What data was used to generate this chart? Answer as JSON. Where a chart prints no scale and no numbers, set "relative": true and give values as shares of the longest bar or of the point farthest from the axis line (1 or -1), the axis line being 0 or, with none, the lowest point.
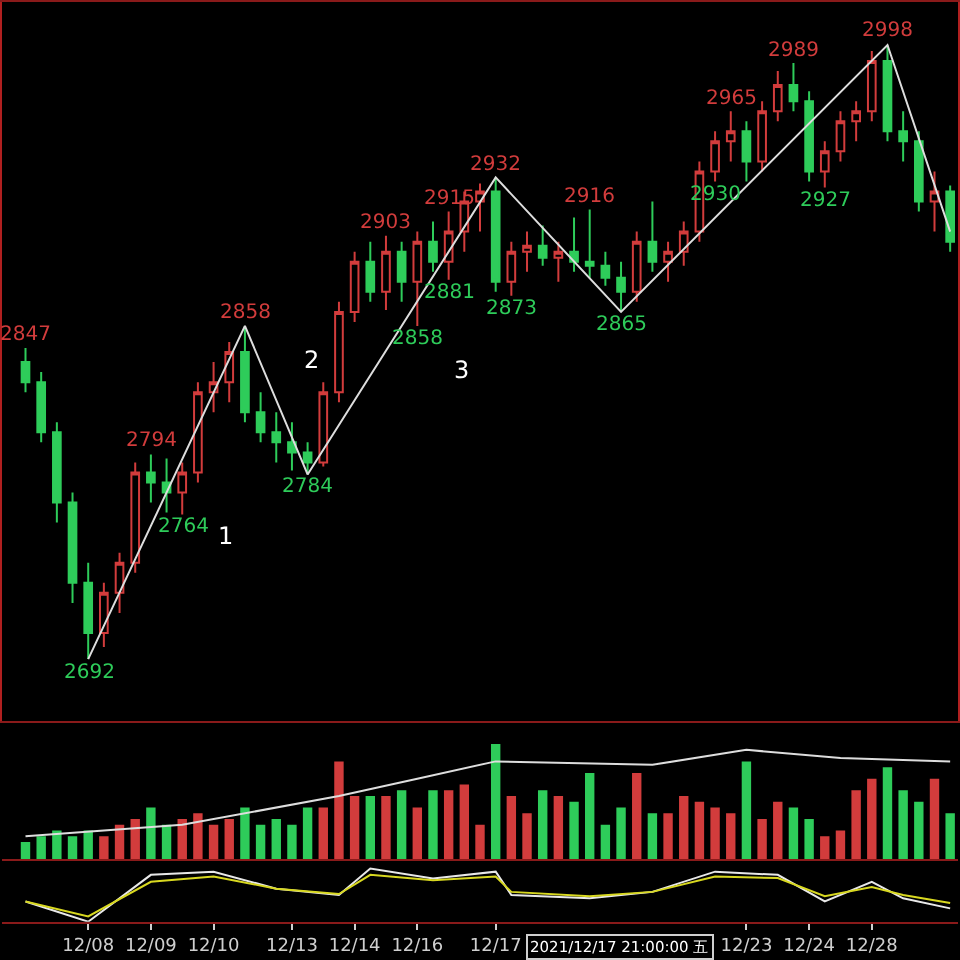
{
  "chart_data": [
    {
      "type": "candlestick",
      "categories": [
        null,
        null,
        null,
        null,
        null,
        null,
        null,
        null,
        null,
        null,
        null,
        null,
        null,
        null,
        null,
        null,
        null,
        null,
        null,
        null,
        null,
        null,
        null,
        null,
        null,
        null,
        null,
        null,
        null,
        null,
        null,
        null,
        null,
        null,
        null,
        null,
        null,
        null,
        null,
        null,
        null,
        null,
        null,
        null,
        null,
        null,
        null,
        null,
        null,
        null,
        null,
        null,
        null,
        null,
        null,
        null,
        null,
        null,
        null,
        null
      ],
      "ohlc": [
        [
          2840,
          2847,
          2825,
          2830
        ],
        [
          2830,
          2835,
          2800,
          2805
        ],
        [
          2805,
          2810,
          2760,
          2770
        ],
        [
          2770,
          2775,
          2720,
          2730
        ],
        [
          2730,
          2740,
          2692,
          2705
        ],
        [
          2705,
          2730,
          2698,
          2725
        ],
        [
          2725,
          2745,
          2715,
          2740
        ],
        [
          2740,
          2790,
          2735,
          2785
        ],
        [
          2785,
          2794,
          2770,
          2780
        ],
        [
          2780,
          2792,
          2765,
          2775
        ],
        [
          2775,
          2790,
          2764,
          2785
        ],
        [
          2785,
          2830,
          2780,
          2825
        ],
        [
          2825,
          2840,
          2815,
          2830
        ],
        [
          2830,
          2850,
          2820,
          2845
        ],
        [
          2845,
          2858,
          2810,
          2815
        ],
        [
          2815,
          2825,
          2800,
          2805
        ],
        [
          2805,
          2815,
          2790,
          2800
        ],
        [
          2800,
          2810,
          2786,
          2795
        ],
        [
          2795,
          2800,
          2784,
          2790
        ],
        [
          2790,
          2830,
          2788,
          2825
        ],
        [
          2825,
          2870,
          2820,
          2865
        ],
        [
          2865,
          2895,
          2860,
          2890
        ],
        [
          2890,
          2900,
          2870,
          2875
        ],
        [
          2875,
          2903,
          2866,
          2895
        ],
        [
          2895,
          2900,
          2870,
          2880
        ],
        [
          2880,
          2905,
          2858,
          2900
        ],
        [
          2900,
          2910,
          2885,
          2890
        ],
        [
          2890,
          2915,
          2881,
          2905
        ],
        [
          2905,
          2925,
          2895,
          2920
        ],
        [
          2920,
          2929,
          2905,
          2925
        ],
        [
          2925,
          2932,
          2875,
          2880
        ],
        [
          2880,
          2900,
          2873,
          2895
        ],
        [
          2895,
          2905,
          2885,
          2898
        ],
        [
          2898,
          2908,
          2888,
          2892
        ],
        [
          2892,
          2900,
          2880,
          2895
        ],
        [
          2895,
          2912,
          2885,
          2890
        ],
        [
          2890,
          2916,
          2882,
          2888
        ],
        [
          2888,
          2895,
          2878,
          2882
        ],
        [
          2882,
          2890,
          2865,
          2875
        ],
        [
          2875,
          2905,
          2870,
          2900
        ],
        [
          2900,
          2920,
          2885,
          2890
        ],
        [
          2890,
          2900,
          2880,
          2895
        ],
        [
          2895,
          2910,
          2888,
          2905
        ],
        [
          2905,
          2940,
          2900,
          2935
        ],
        [
          2935,
          2955,
          2930,
          2950
        ],
        [
          2950,
          2965,
          2940,
          2955
        ],
        [
          2955,
          2960,
          2930,
          2940
        ],
        [
          2940,
          2970,
          2935,
          2965
        ],
        [
          2965,
          2985,
          2960,
          2978
        ],
        [
          2978,
          2989,
          2965,
          2970
        ],
        [
          2970,
          2975,
          2930,
          2935
        ],
        [
          2935,
          2950,
          2927,
          2945
        ],
        [
          2945,
          2965,
          2940,
          2960
        ],
        [
          2960,
          2970,
          2950,
          2965
        ],
        [
          2965,
          2995,
          2960,
          2990
        ],
        [
          2990,
          2998,
          2950,
          2955
        ],
        [
          2955,
          2965,
          2940,
          2950
        ],
        [
          2950,
          2955,
          2915,
          2920
        ],
        [
          2920,
          2935,
          2905,
          2925
        ],
        [
          2925,
          2928,
          2895,
          2900
        ]
      ],
      "series": [
        {
          "type": "line",
          "color": "#dddddd",
          "values": [
            null,
            null,
            null,
            null,
            2692,
            null,
            null,
            null,
            null,
            null,
            null,
            null,
            null,
            null,
            2858,
            null,
            null,
            null,
            2784,
            null,
            null,
            null,
            null,
            null,
            null,
            null,
            null,
            null,
            null,
            null,
            2932,
            null,
            null,
            null,
            null,
            null,
            null,
            null,
            2865,
            null,
            null,
            null,
            null,
            null,
            null,
            null,
            null,
            null,
            null,
            null,
            null,
            null,
            null,
            null,
            null,
            2998,
            null,
            null,
            null,
            2905
          ]
        }
      ],
      "tick_labels": false,
      "annotations": [
        {
          "text": "2847",
          "y": 2847
        },
        {
          "text": "2692",
          "y": 2692
        },
        {
          "text": "2794",
          "y": 2794
        },
        {
          "text": "2764",
          "y": 2764
        },
        {
          "text": "2858",
          "y": 2858
        },
        {
          "text": "2784",
          "y": 2784
        },
        {
          "text": "2903",
          "y": 2903
        },
        {
          "text": "2858",
          "y": 2858
        },
        {
          "text": "2915",
          "y": 2915
        },
        {
          "text": "2881",
          "y": 2881
        },
        {
          "text": "2932",
          "y": 2932
        },
        {
          "text": "2873",
          "y": 2873
        },
        {
          "text": "2916",
          "y": 2916
        },
        {
          "text": "2865",
          "y": 2865
        },
        {
          "text": "2965",
          "y": 2965
        },
        {
          "text": "2930",
          "y": 2930
        },
        {
          "text": "2989",
          "y": 2989
        },
        {
          "text": "2927",
          "y": 2927
        },
        {
          "text": "2998",
          "y": 2998
        },
        "1",
        "2",
        "3"
      ]
    },
    {
      "type": "bar",
      "relative": true,
      "categories": [
        null,
        null,
        null,
        null,
        null,
        null,
        null,
        null,
        null,
        null,
        null,
        null,
        null,
        null,
        null,
        null,
        null,
        null,
        null,
        null,
        null,
        null,
        null,
        null,
        null,
        null,
        null,
        null,
        null,
        null,
        null,
        null,
        null,
        null,
        null,
        null,
        null,
        null,
        null,
        null,
        null,
        null,
        null,
        null,
        null,
        null,
        null,
        null,
        null,
        null,
        null,
        null,
        null,
        null,
        null,
        null,
        null,
        null,
        null,
        null
      ],
      "tick_labels": false,
      "series": [
        {
          "type": "bar",
          "values": [
            0.15,
            0.2,
            0.25,
            0.2,
            0.25,
            0.2,
            0.3,
            0.35,
            0.45,
            0.3,
            0.35,
            0.4,
            0.3,
            0.35,
            0.45,
            0.3,
            0.35,
            0.3,
            0.45,
            0.45,
            0.85,
            0.55,
            0.55,
            0.55,
            0.6,
            0.45,
            0.6,
            0.6,
            0.65,
            0.3,
            1.0,
            0.55,
            0.4,
            0.6,
            0.55,
            0.5,
            0.75,
            0.3,
            0.45,
            0.75,
            0.4,
            0.4,
            0.55,
            0.5,
            0.45,
            0.4,
            0.85,
            0.35,
            0.5,
            0.45,
            0.35,
            0.2,
            0.25,
            0.6,
            0.7,
            0.8,
            0.6,
            0.5,
            0.7,
            0.4
          ],
          "colors": [
            "#2ecc5a",
            "#2ecc5a",
            "#2ecc5a",
            "#2ecc5a",
            "#2ecc5a",
            "#d23c3c",
            "#d23c3c",
            "#d23c3c",
            "#2ecc5a",
            "#2ecc5a",
            "#d23c3c",
            "#d23c3c",
            "#d23c3c",
            "#d23c3c",
            "#2ecc5a",
            "#2ecc5a",
            "#2ecc5a",
            "#2ecc5a",
            "#2ecc5a",
            "#d23c3c",
            "#d23c3c",
            "#d23c3c",
            "#2ecc5a",
            "#d23c3c",
            "#2ecc5a",
            "#d23c3c",
            "#2ecc5a",
            "#d23c3c",
            "#d23c3c",
            "#d23c3c",
            "#2ecc5a",
            "#d23c3c",
            "#d23c3c",
            "#2ecc5a",
            "#d23c3c",
            "#2ecc5a",
            "#2ecc5a",
            "#2ecc5a",
            "#2ecc5a",
            "#d23c3c",
            "#2ecc5a",
            "#d23c3c",
            "#d23c3c",
            "#d23c3c",
            "#d23c3c",
            "#d23c3c",
            "#2ecc5a",
            "#d23c3c",
            "#d23c3c",
            "#2ecc5a",
            "#2ecc5a",
            "#d23c3c",
            "#d23c3c",
            "#d23c3c",
            "#d23c3c",
            "#2ecc5a",
            "#2ecc5a",
            "#2ecc5a",
            "#d23c3c",
            "#2ecc5a"
          ]
        },
        {
          "type": "line",
          "color": "#dddddd",
          "values": [
            0.2,
            null,
            null,
            null,
            null,
            null,
            null,
            null,
            null,
            null,
            0.3,
            null,
            null,
            null,
            null,
            null,
            null,
            null,
            null,
            null,
            0.55,
            null,
            null,
            null,
            null,
            0.7,
            null,
            null,
            null,
            null,
            0.85,
            null,
            null,
            null,
            null,
            null,
            null,
            null,
            null,
            null,
            0.82,
            null,
            null,
            null,
            null,
            null,
            0.95,
            null,
            null,
            null,
            null,
            null,
            0.88,
            null,
            null,
            null,
            null,
            null,
            null,
            0.85
          ]
        }
      ]
    },
    {
      "type": "line",
      "relative": true,
      "categories": [
        null,
        null,
        null,
        null,
        "12/08",
        null,
        null,
        null,
        "12/09",
        null,
        null,
        null,
        "12/10",
        null,
        null,
        null,
        null,
        "12/13",
        null,
        null,
        null,
        "12/14",
        null,
        null,
        null,
        "12/16",
        null,
        null,
        null,
        null,
        "12/17",
        null,
        null,
        null,
        null,
        null,
        null,
        null,
        null,
        null,
        null,
        null,
        null,
        null,
        null,
        null,
        "12/23",
        null,
        null,
        null,
        "12/24",
        null,
        null,
        null,
        "12/28",
        null,
        null,
        null,
        null,
        null
      ],
      "tick_labels": "x",
      "annotations": [
        "2021/12/17 21:00:00 五"
      ],
      "series": [
        {
          "color": "#e8e8e8",
          "values": [
            0.38,
            null,
            null,
            null,
            0.0,
            null,
            null,
            null,
            0.88,
            null,
            null,
            null,
            0.94,
            null,
            null,
            null,
            0.62,
            null,
            null,
            null,
            0.5,
            null,
            1.0,
            null,
            null,
            null,
            0.81,
            null,
            null,
            null,
            0.94,
            0.5,
            null,
            null,
            null,
            null,
            0.44,
            null,
            null,
            null,
            0.56,
            null,
            null,
            null,
            0.94,
            null,
            null,
            null,
            0.88,
            null,
            null,
            0.38,
            null,
            null,
            0.75,
            null,
            0.44,
            null,
            null,
            0.25
          ]
        },
        {
          "color": "#d8d820",
          "values": [
            0.38,
            null,
            null,
            null,
            0.1,
            null,
            null,
            null,
            0.75,
            null,
            null,
            null,
            0.85,
            null,
            null,
            null,
            0.62,
            null,
            null,
            null,
            0.52,
            null,
            0.88,
            null,
            null,
            null,
            0.78,
            null,
            null,
            null,
            0.85,
            0.56,
            null,
            null,
            null,
            null,
            0.48,
            null,
            null,
            null,
            0.56,
            null,
            null,
            null,
            0.85,
            null,
            null,
            null,
            0.82,
            null,
            null,
            0.48,
            null,
            null,
            0.65,
            null,
            0.5,
            null,
            null,
            0.35
          ]
        }
      ]
    }
  ]
}
